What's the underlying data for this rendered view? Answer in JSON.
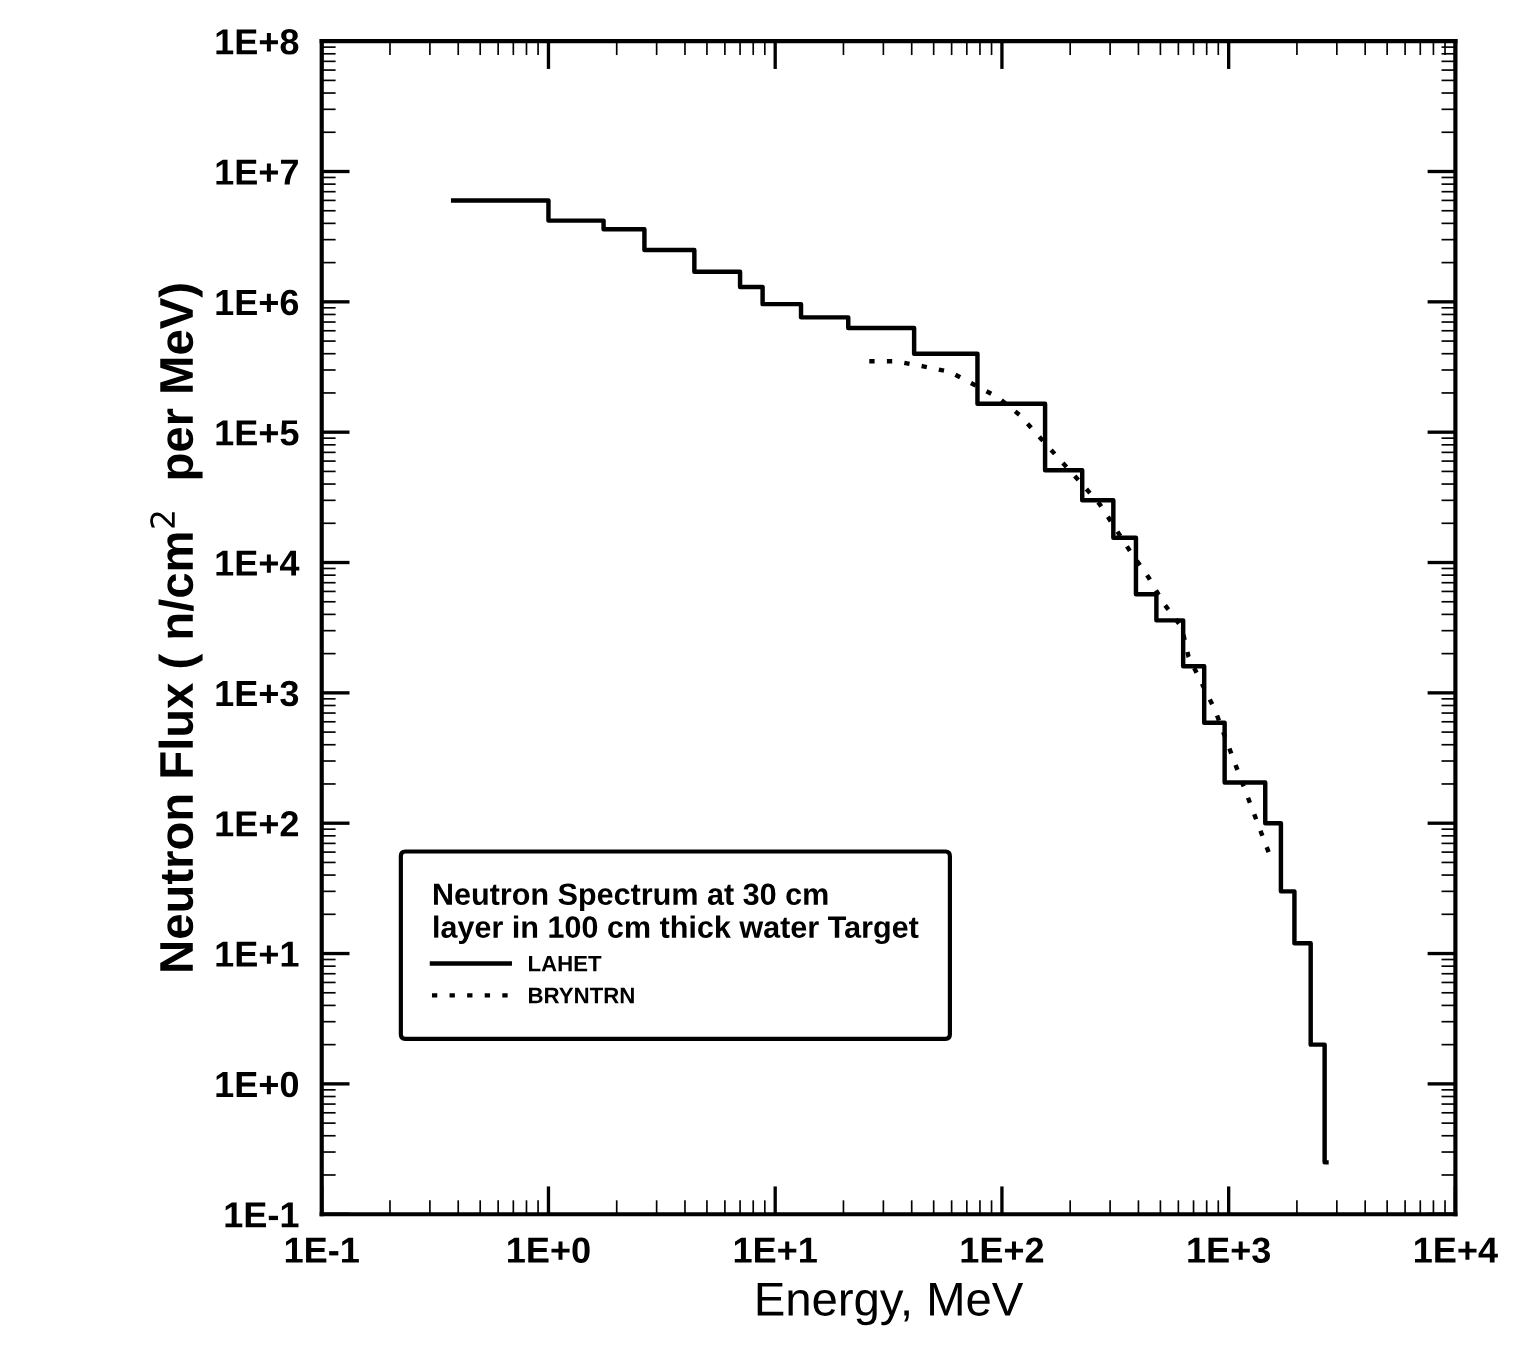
{
  "chart_data": {
    "type": "step",
    "xlabel": "Energy, MeV",
    "ylabel": "Neutron Flux ( n/cm$^{2}$  per MeV)",
    "legend_title": "Neutron Spectrum at 30 cm\nlayer in 100 cm thick water Target",
    "log": "xy",
    "legend": "bottom left",
    "grid": false,
    "xlim": [
      0.1,
      10000
    ],
    "ylim": [
      0.1,
      100000000
    ],
    "xticks": [
      {
        "value": 0.1,
        "label": "1E-1"
      },
      {
        "value": 1,
        "label": "1E+0"
      },
      {
        "value": 10,
        "label": "1E+1"
      },
      {
        "value": 100,
        "label": "1E+2"
      },
      {
        "value": 1000,
        "label": "1E+3"
      },
      {
        "value": 10000,
        "label": "1E+4"
      }
    ],
    "yticks": [
      {
        "value": 0.1,
        "label": "1E-1"
      },
      {
        "value": 1,
        "label": "1E+0"
      },
      {
        "value": 10,
        "label": "1E+1"
      },
      {
        "value": 100,
        "label": "1E+2"
      },
      {
        "value": 1000,
        "label": "1E+3"
      },
      {
        "value": 10000,
        "label": "1E+4"
      },
      {
        "value": 100000,
        "label": "1E+5"
      },
      {
        "value": 1000000,
        "label": "1E+6"
      },
      {
        "value": 10000000,
        "label": "1E+7"
      },
      {
        "value": 100000000,
        "label": "1E+8"
      }
    ],
    "series": [
      {
        "name": "LAHET",
        "color": "#000000",
        "line_style": "solid",
        "x": [
          0.38,
          1.0,
          1.75,
          2.65,
          4.4,
          7,
          8.8,
          13,
          21,
          41,
          78,
          155,
          226,
          310,
          390,
          480,
          630,
          780,
          960,
          1450,
          1700,
          1950,
          2300,
          2650,
          2700
        ],
        "values": [
          6000000,
          4200000,
          3600000,
          2500000,
          1700000,
          1300000,
          960000,
          760000,
          630000,
          400000,
          165000,
          51000,
          30000,
          15500,
          5700,
          3600,
          1600,
          590,
          205,
          100,
          30,
          12,
          2,
          0.25,
          0.25
        ]
      },
      {
        "name": "BRYNTRN",
        "type": "line",
        "color": "#000000",
        "line_style": "dotted",
        "x": [
          26,
          34,
          45,
          59,
          96,
          120,
          148,
          178,
          220,
          270,
          370,
          445,
          515,
          620,
          665,
          870,
          1090,
          1500
        ],
        "values": [
          350000,
          350000,
          320000,
          290000,
          185000,
          135000,
          90000,
          63000,
          42000,
          28000,
          12000,
          7600,
          4900,
          3200,
          1900,
          740,
          260,
          60
        ]
      }
    ]
  }
}
